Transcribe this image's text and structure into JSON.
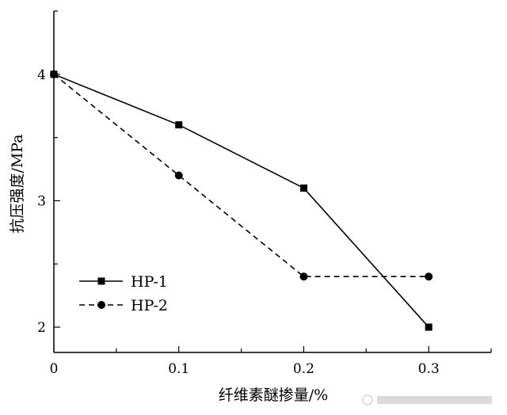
{
  "chart_data": {
    "type": "line",
    "xlabel": "纤维素醚掺量/%",
    "ylabel": "抗压强度/MPa",
    "xlim": [
      0,
      0.35
    ],
    "ylim": [
      1.8,
      4.5
    ],
    "x_ticks": [
      0,
      0.1,
      0.2,
      0.3
    ],
    "x_tick_labels": [
      "0",
      "0.1",
      "0.2",
      "0.3"
    ],
    "y_ticks": [
      2,
      3,
      4
    ],
    "y_tick_labels": [
      "2",
      "3",
      "4"
    ],
    "legend_position": "bottom-left",
    "grid": false,
    "series": [
      {
        "name": "HP-1",
        "marker": "square",
        "line_style": "solid",
        "x": [
          0,
          0.1,
          0.2,
          0.3
        ],
        "y": [
          4.0,
          3.6,
          3.1,
          2.0
        ]
      },
      {
        "name": "HP-2",
        "marker": "circle",
        "line_style": "dashed",
        "x": [
          0,
          0.1,
          0.2,
          0.3
        ],
        "y": [
          4.0,
          3.2,
          2.4,
          2.4
        ]
      }
    ]
  },
  "colors": {
    "line": "#000000",
    "watermark": "#888888"
  }
}
